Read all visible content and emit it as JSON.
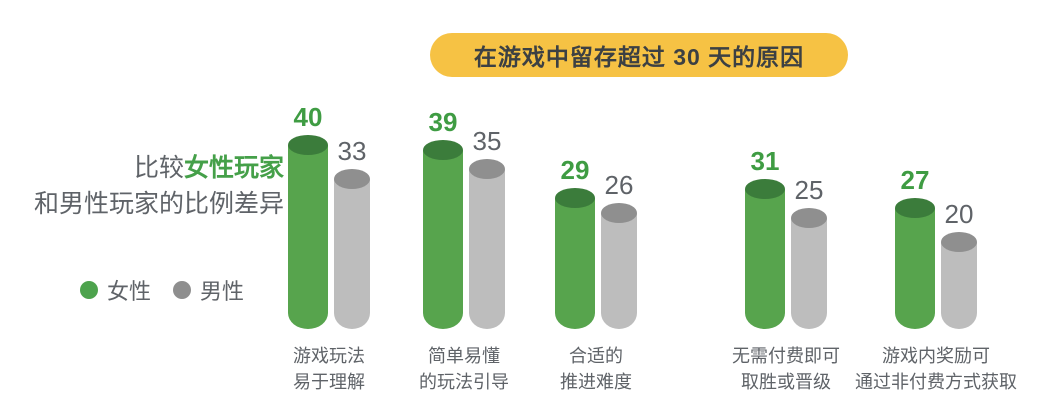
{
  "title": {
    "text": "在游戏中留存超过 30 天的原因"
  },
  "intro": {
    "prefix": "比较",
    "highlight": "女性玩家",
    "line2": "和男性玩家的比例差异"
  },
  "legend": {
    "items": [
      {
        "label": "女性",
        "color": "#4DA34D"
      },
      {
        "label": "男性",
        "color": "#8E8E8E"
      }
    ]
  },
  "colors": {
    "banner_bg": "#F6C244",
    "banner_text": "#3C4043",
    "text_gray": "#5F6368",
    "highlight_green": "#45A049"
  },
  "chart_data": {
    "type": "bar",
    "title": "在游戏中留存超过 30 天的原因",
    "categories": [
      [
        "游戏玩法",
        "易于理解"
      ],
      [
        "简单易懂",
        "的玩法引导"
      ],
      [
        "合适的",
        "推进难度"
      ],
      [
        "无需付费即可",
        "取胜或晋级"
      ],
      [
        "游戏内奖励可",
        "通过非付费方式获取"
      ]
    ],
    "series": [
      {
        "name": "女性",
        "values": [
          40,
          39,
          29,
          31,
          27
        ],
        "body_color": "#57A44D",
        "top_color": "#3B7C3B",
        "value_color": "#3F9C43"
      },
      {
        "name": "男性",
        "values": [
          33,
          35,
          26,
          25,
          20
        ],
        "body_color": "#BDBDBD",
        "top_color": "#8F8F8F",
        "value_color": "#5F6368"
      }
    ],
    "ylim": [
      0,
      42
    ],
    "value_labels": true,
    "grid": false,
    "legend_position": "left",
    "bar_style": "cylinder"
  }
}
